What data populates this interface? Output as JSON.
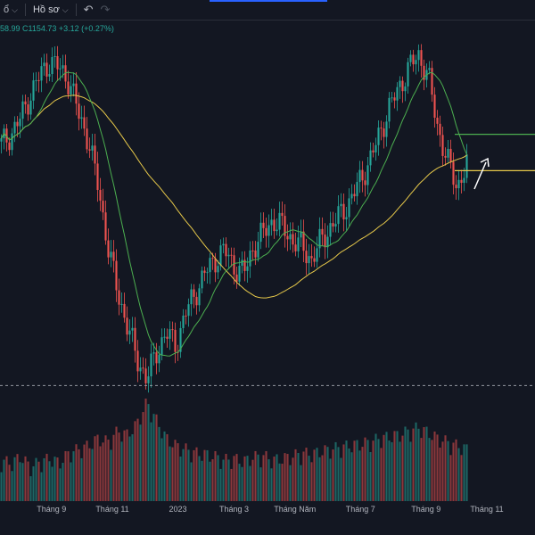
{
  "toolbar": {
    "first_icon": "chart-type-icon",
    "profile_label": "Hồ sơ",
    "undo_icon": "undo-icon",
    "redo_icon": "redo-icon"
  },
  "legend": {
    "ohlc_text": "58.99  C1154.73  +3.12 (+0.27%)"
  },
  "colors": {
    "up": "#26a69a",
    "down": "#ef5350",
    "ma_fast": "#4caf50",
    "ma_slow": "#e6c84a",
    "background": "#131722"
  },
  "chart_data": {
    "type": "candlestick",
    "x_tick_labels": [
      "Tháng 9",
      "Tháng 11",
      "2023",
      "Tháng 3",
      "Tháng Năm",
      "Tháng 7",
      "Tháng 9",
      "Tháng 11"
    ],
    "close_series": [
      1185,
      1200,
      1225,
      1260,
      1290,
      1310,
      1300,
      1280,
      1230,
      1190,
      1120,
      1030,
      960,
      910,
      860,
      830,
      870,
      900,
      880,
      930,
      960,
      990,
      1010,
      1025,
      1000,
      990,
      1030,
      1050,
      1070,
      1060,
      1040,
      1030,
      1010,
      1040,
      1060,
      1080,
      1100,
      1130,
      1160,
      1200,
      1240,
      1270,
      1300,
      1320,
      1290,
      1210,
      1160,
      1120,
      1155
    ],
    "volume_series": [
      40,
      35,
      45,
      30,
      38,
      42,
      36,
      50,
      55,
      60,
      70,
      65,
      80,
      75,
      90,
      120,
      95,
      70,
      60,
      55,
      50,
      48,
      45,
      40,
      42,
      38,
      44,
      46,
      40,
      42,
      45,
      50,
      48,
      52,
      55,
      58,
      60,
      62,
      65,
      70,
      72,
      75,
      80,
      85,
      78,
      70,
      65,
      60,
      55
    ],
    "price_range": [
      780,
      1360
    ],
    "horizontal_levels": [
      {
        "value": 1200,
        "color": "#4caf50"
      },
      {
        "value": 1145,
        "color": "#e6c84a"
      }
    ],
    "dashed_level": 820,
    "grid": false
  }
}
